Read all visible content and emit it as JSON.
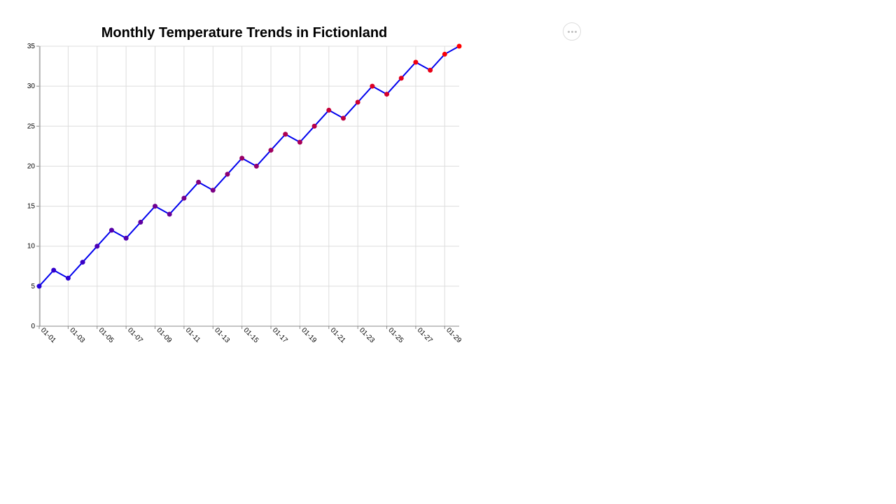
{
  "chart_data": {
    "type": "line",
    "title": "Monthly Temperature Trends in Fictionland",
    "xlabel": "",
    "ylabel": "",
    "x": [
      "01-01",
      "01-02",
      "01-03",
      "01-04",
      "01-05",
      "01-06",
      "01-07",
      "01-08",
      "01-09",
      "01-10",
      "01-11",
      "01-12",
      "01-13",
      "01-14",
      "01-15",
      "01-16",
      "01-17",
      "01-18",
      "01-19",
      "01-20",
      "01-21",
      "01-22",
      "01-23",
      "01-24",
      "01-25",
      "01-26",
      "01-27",
      "01-28",
      "01-29",
      "01-30"
    ],
    "x_tick_labels": [
      "01-01",
      "01-03",
      "01-05",
      "01-07",
      "01-09",
      "01-11",
      "01-13",
      "01-15",
      "01-17",
      "01-19",
      "01-21",
      "01-23",
      "01-25",
      "01-27",
      "01-29"
    ],
    "series": [
      {
        "name": "",
        "values": [
          5,
          7,
          6,
          8,
          10,
          12,
          11,
          13,
          15,
          14,
          16,
          18,
          17,
          19,
          21,
          20,
          22,
          24,
          23,
          25,
          27,
          26,
          28,
          30,
          29,
          31,
          33,
          32,
          34,
          35
        ]
      }
    ],
    "ylim": [
      0,
      35
    ],
    "y_ticks": [
      0,
      5,
      10,
      15,
      20,
      25,
      30,
      35
    ],
    "grid": true,
    "legend": "none",
    "colors": {
      "line": "#0000ee",
      "point_low": "#0000ff",
      "point_high": "#ff0000"
    }
  },
  "toolbar": {
    "menu_icon": "more-horizontal-icon"
  }
}
